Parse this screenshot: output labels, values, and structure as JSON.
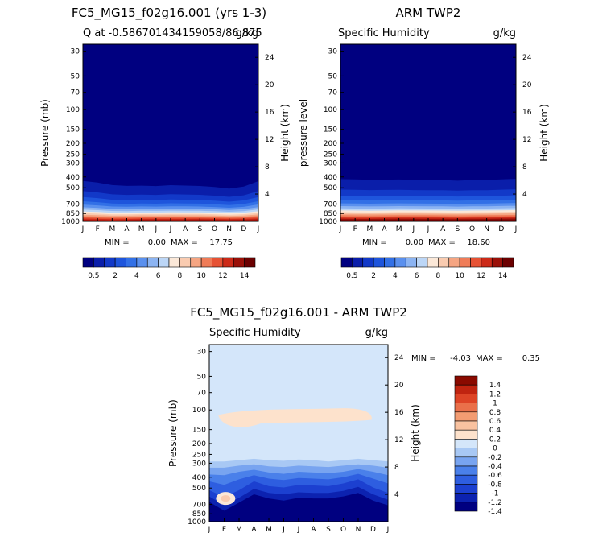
{
  "colors": {
    "sequential": [
      "#000080",
      "#0a1eaa",
      "#1239c8",
      "#1e55dc",
      "#3270e6",
      "#5a90ee",
      "#8cb4f2",
      "#bcd6f6",
      "#fbe8d8",
      "#f9cbb0",
      "#f5a582",
      "#ef7c58",
      "#e65234",
      "#cc2a18",
      "#9a1008",
      "#6b0000"
    ],
    "diverging": [
      "#000080",
      "#0c22b0",
      "#1c40d0",
      "#2e5ee0",
      "#4a80ea",
      "#78a4f0",
      "#a8c8f4",
      "#d4e6fa",
      "#fde2cc",
      "#f9c2a0",
      "#f39c72",
      "#ea704a",
      "#dd4426",
      "#c02410",
      "#8a0a00"
    ]
  },
  "chart_data": [
    {
      "id": "model",
      "type": "heatmap",
      "title": "FC5_MG15_f02g16.001 (yrs 1-3)",
      "subtitle_left": "Q at -0.586701434159058/86.875",
      "subtitle_right": "g/kg",
      "ylabel": "Pressure (mb)",
      "ylabel_right": "Height (km)",
      "months": [
        "J",
        "F",
        "M",
        "A",
        "M",
        "J",
        "J",
        "A",
        "S",
        "O",
        "N",
        "D",
        "J"
      ],
      "pressure_ticks": [
        30,
        50,
        70,
        100,
        150,
        200,
        250,
        300,
        400,
        500,
        700,
        850,
        1000
      ],
      "height_ticks": [
        24,
        20,
        16,
        12,
        8,
        4
      ],
      "min_label": "MIN =",
      "min_value": "0.00",
      "max_label": "MAX =",
      "max_value": "17.75",
      "moist_top_km": [
        8.4,
        8.1,
        7.6,
        7.4,
        7.4,
        7.3,
        7.5,
        7.4,
        7.3,
        7.1,
        6.8,
        7.2,
        8.3
      ],
      "surface_value": [
        17.2,
        17.0,
        16.8,
        17.0,
        17.4,
        17.5,
        17.4,
        17.5,
        17.6,
        17.5,
        17.3,
        17.4,
        17.6
      ]
    },
    {
      "id": "obs",
      "type": "heatmap",
      "title": "ARM TWP2",
      "subtitle_left": "Specific Humidity",
      "subtitle_right": "g/kg",
      "ylabel": "pressure level",
      "ylabel_right": "Height (km)",
      "months": [
        "J",
        "F",
        "M",
        "A",
        "M",
        "J",
        "J",
        "A",
        "S",
        "O",
        "N",
        "D",
        "J"
      ],
      "pressure_ticks": [
        30,
        50,
        70,
        100,
        150,
        200,
        250,
        300,
        400,
        500,
        700,
        850,
        1000
      ],
      "height_ticks": [
        24,
        20,
        16,
        12,
        8,
        4
      ],
      "min_label": "MIN =",
      "min_value": "0.00",
      "max_label": "MAX =",
      "max_value": "18.60",
      "moist_top_km": [
        8.6,
        8.6,
        8.5,
        8.5,
        8.5,
        8.4,
        8.4,
        8.4,
        8.3,
        8.4,
        8.4,
        8.5,
        8.6
      ],
      "surface_value": [
        18.2,
        18.0,
        18.0,
        18.2,
        18.4,
        18.5,
        18.4,
        18.3,
        18.2,
        18.3,
        18.4,
        18.5,
        18.6
      ]
    },
    {
      "id": "diff",
      "type": "heatmap",
      "title": "FC5_MG15_f02g16.001 - ARM TWP2",
      "subtitle_left": "Specific Humidity",
      "subtitle_right": "g/kg",
      "ylabel": "Pressure (mb)",
      "ylabel_right": "Height (km)",
      "months": [
        "J",
        "F",
        "M",
        "A",
        "M",
        "J",
        "J",
        "A",
        "S",
        "O",
        "N",
        "D",
        "J"
      ],
      "pressure_ticks": [
        30,
        50,
        70,
        100,
        150,
        200,
        250,
        300,
        400,
        500,
        700,
        850,
        1000
      ],
      "height_ticks": [
        24,
        20,
        16,
        12,
        8,
        4
      ],
      "min_label": "MIN =",
      "min_value": "-4.03",
      "max_label": "MAX =",
      "max_value": "0.35"
    }
  ],
  "colorbar_seq": {
    "labels": [
      "0.5",
      "2",
      "4",
      "6",
      "8",
      "10",
      "12",
      "14"
    ]
  },
  "colorbar_diff": {
    "labels": [
      "1.4",
      "1.2",
      "1",
      "0.8",
      "0.6",
      "0.4",
      "0.2",
      "0",
      "-0.2",
      "-0.4",
      "-0.6",
      "-0.8",
      "-1",
      "-1.2",
      "-1.4"
    ]
  }
}
